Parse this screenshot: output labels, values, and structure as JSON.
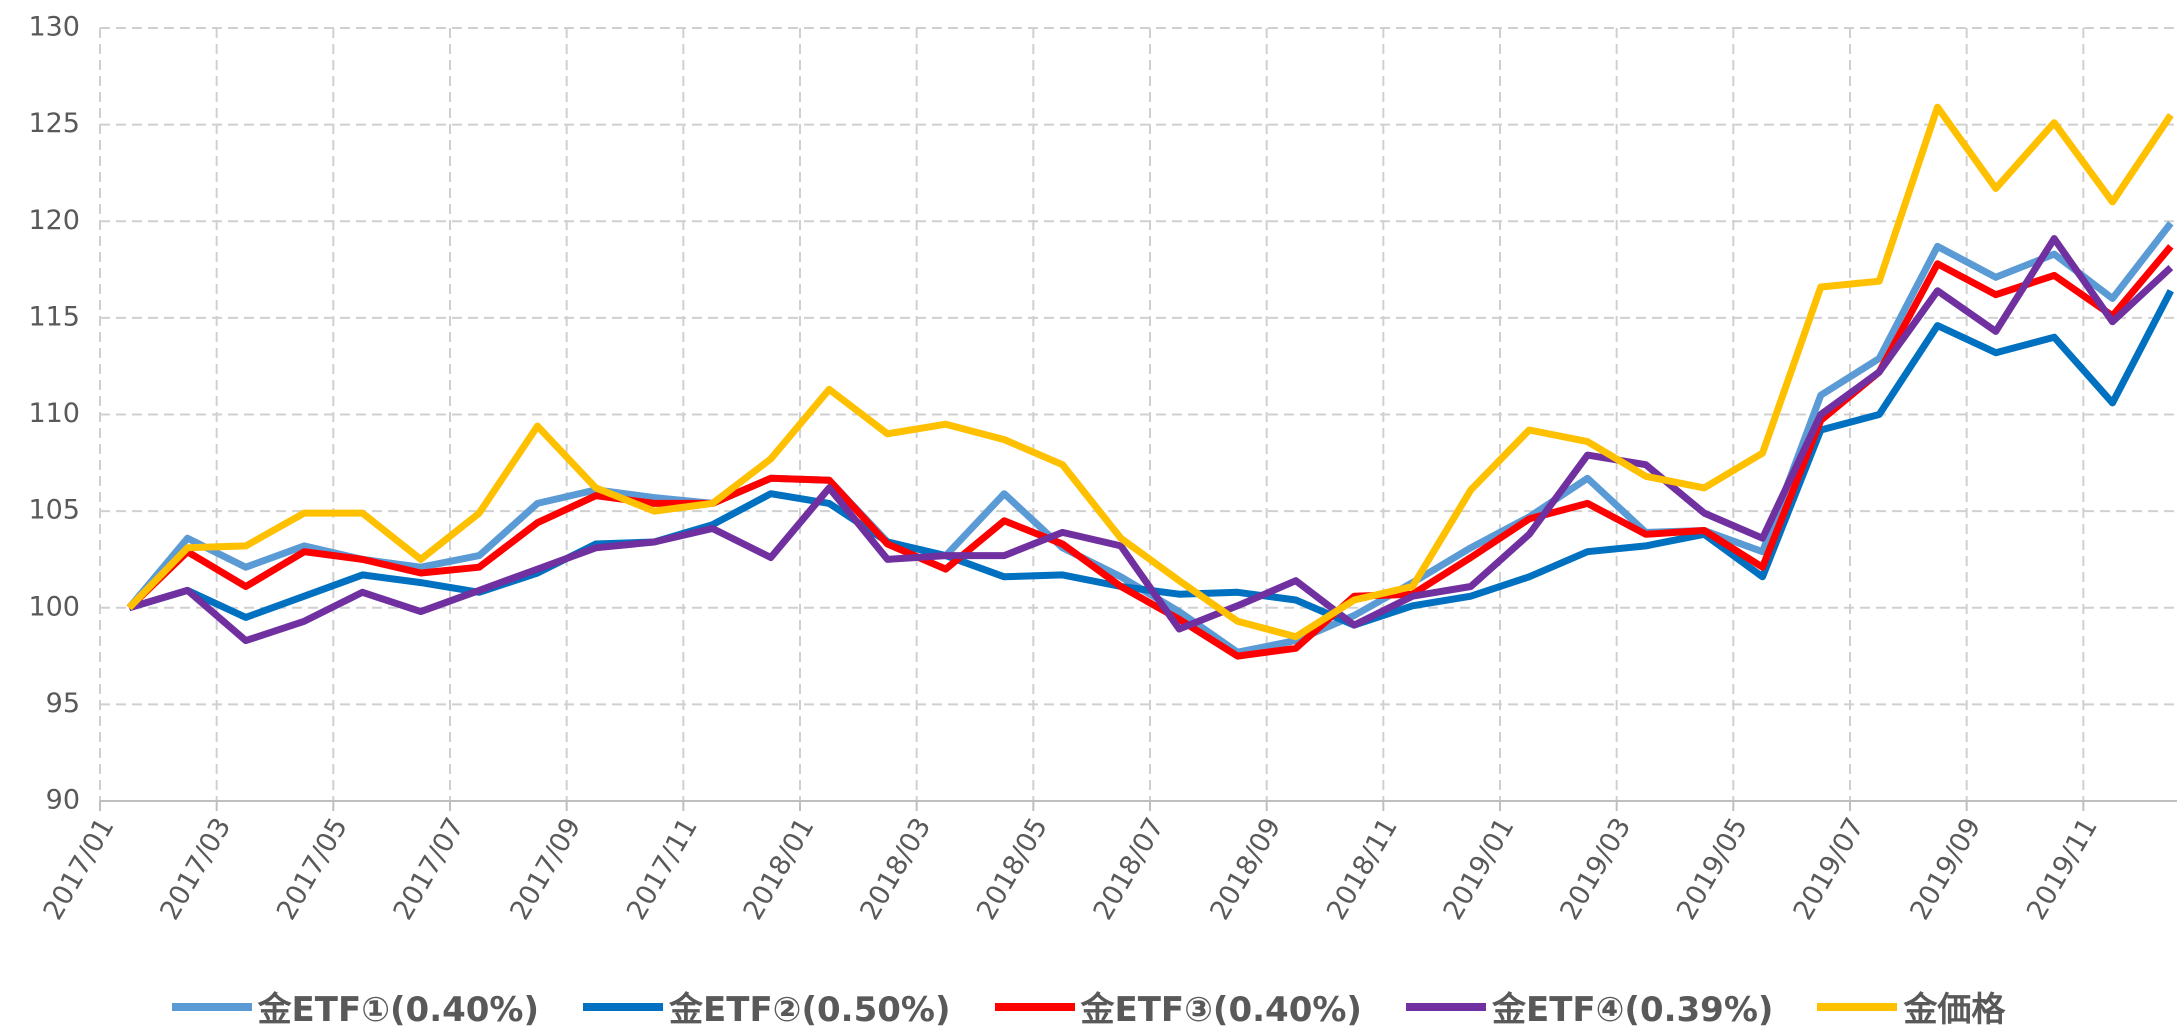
{
  "chart_data": {
    "type": "line",
    "categories": [
      "2017/01",
      null,
      "2017/03",
      null,
      "2017/05",
      null,
      "2017/07",
      null,
      "2017/09",
      null,
      "2017/11",
      null,
      "2018/01",
      null,
      "2018/03",
      null,
      "2018/05",
      null,
      "2018/07",
      null,
      "2018/09",
      null,
      "2018/11",
      null,
      "2019/01",
      null,
      "2019/03",
      null,
      "2019/05",
      null,
      "2019/07",
      null,
      "2019/09",
      null,
      "2019/11",
      null
    ],
    "ylim": [
      90,
      130
    ],
    "yticks": [
      90,
      95,
      100,
      105,
      110,
      115,
      120,
      125,
      130
    ],
    "grid": true,
    "series": [
      {
        "name": "金ETF①(0.40%)",
        "color": "#5b9bd5",
        "values": [
          100,
          103.6,
          102.1,
          103.2,
          102.5,
          102.1,
          102.7,
          105.4,
          106.1,
          105.7,
          105.4,
          106.7,
          106.6,
          103.4,
          102.7,
          105.9,
          103.1,
          101.6,
          99.8,
          97.7,
          98.3,
          99.6,
          101.3,
          103.1,
          104.7,
          106.7,
          103.9,
          104.0,
          102.9,
          111.0,
          112.9,
          118.7,
          117.1,
          118.3,
          116.0,
          119.9
        ]
      },
      {
        "name": "金ETF②(0.50%)",
        "color": "#0070c0",
        "values": [
          100,
          100.9,
          99.5,
          100.6,
          101.7,
          101.3,
          100.8,
          101.8,
          103.3,
          103.4,
          104.3,
          105.9,
          105.4,
          103.4,
          102.7,
          101.6,
          101.7,
          101.1,
          100.7,
          100.8,
          100.4,
          99.1,
          100.1,
          100.6,
          101.6,
          102.9,
          103.2,
          103.8,
          101.6,
          109.2,
          110.0,
          114.6,
          113.2,
          114.0,
          110.6,
          116.4
        ]
      },
      {
        "name": "金ETF③(0.40%)",
        "color": "#ff0000",
        "values": [
          100,
          102.9,
          101.1,
          102.9,
          102.5,
          101.8,
          102.1,
          104.4,
          105.8,
          105.4,
          105.4,
          106.7,
          106.6,
          103.3,
          102.0,
          104.5,
          103.3,
          101.1,
          99.4,
          97.5,
          97.9,
          100.6,
          100.7,
          102.6,
          104.6,
          105.4,
          103.8,
          104.0,
          102.1,
          109.7,
          112.2,
          117.8,
          116.2,
          117.2,
          115.1,
          118.7
        ]
      },
      {
        "name": "金ETF④(0.39%)",
        "color": "#7030a0",
        "values": [
          100,
          100.9,
          98.3,
          99.3,
          100.8,
          99.8,
          100.9,
          102.0,
          103.1,
          103.4,
          104.1,
          102.6,
          106.2,
          102.5,
          102.7,
          102.7,
          103.9,
          103.2,
          98.9,
          100.1,
          101.4,
          99.1,
          100.6,
          101.1,
          103.8,
          107.9,
          107.4,
          104.9,
          103.6,
          110.0,
          112.2,
          116.4,
          114.3,
          119.1,
          114.8,
          117.6
        ]
      },
      {
        "name": "金価格",
        "color": "#ffc000",
        "values": [
          100,
          103.1,
          103.2,
          104.9,
          104.9,
          102.5,
          104.9,
          109.4,
          106.2,
          105.0,
          105.4,
          107.7,
          111.3,
          109.0,
          109.5,
          108.7,
          107.4,
          103.6,
          101.4,
          99.3,
          98.5,
          100.4,
          101.1,
          106.1,
          109.2,
          108.6,
          106.8,
          106.2,
          108.0,
          116.6,
          116.9,
          125.9,
          121.7,
          125.1,
          121.0,
          125.5
        ]
      }
    ]
  }
}
